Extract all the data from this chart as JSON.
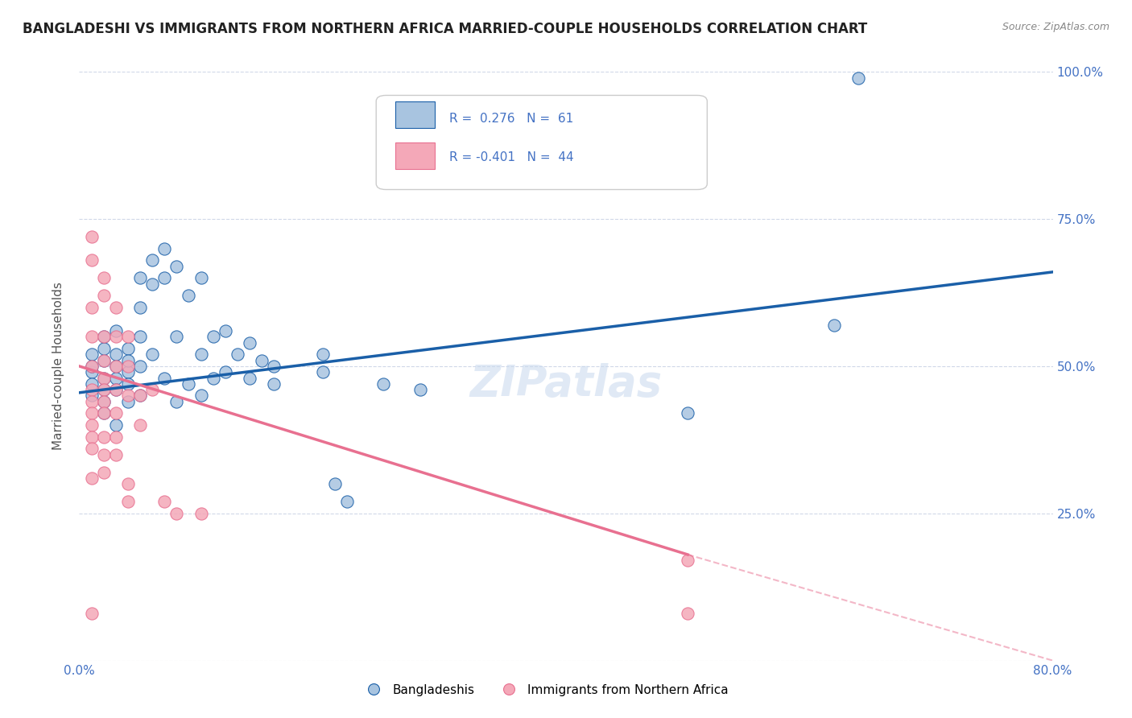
{
  "title": "BANGLADESHI VS IMMIGRANTS FROM NORTHERN AFRICA MARRIED-COUPLE HOUSEHOLDS CORRELATION CHART",
  "source": "Source: ZipAtlas.com",
  "ylabel": "Married-couple Households",
  "xlabel": "",
  "xlim": [
    0.0,
    0.8
  ],
  "ylim": [
    0.0,
    1.0
  ],
  "xticks": [
    0.0,
    0.2,
    0.4,
    0.6,
    0.8
  ],
  "xticklabels": [
    "0.0%",
    "",
    "",
    "",
    "80.0%"
  ],
  "yticks": [
    0.0,
    0.25,
    0.5,
    0.75,
    1.0
  ],
  "yticklabels": [
    "",
    "25.0%",
    "50.0%",
    "75.0%",
    "100.0%"
  ],
  "watermark": "ZIPatlas",
  "blue_R": 0.276,
  "blue_N": 61,
  "pink_R": -0.401,
  "pink_N": 44,
  "blue_color": "#a8c4e0",
  "pink_color": "#f4a8b8",
  "blue_line_color": "#1a5fa8",
  "pink_line_color": "#e87090",
  "blue_scatter": [
    [
      0.01,
      0.49
    ],
    [
      0.01,
      0.47
    ],
    [
      0.01,
      0.45
    ],
    [
      0.01,
      0.52
    ],
    [
      0.01,
      0.5
    ],
    [
      0.02,
      0.48
    ],
    [
      0.02,
      0.51
    ],
    [
      0.02,
      0.44
    ],
    [
      0.02,
      0.46
    ],
    [
      0.02,
      0.53
    ],
    [
      0.02,
      0.55
    ],
    [
      0.02,
      0.42
    ],
    [
      0.03,
      0.5
    ],
    [
      0.03,
      0.48
    ],
    [
      0.03,
      0.52
    ],
    [
      0.03,
      0.46
    ],
    [
      0.03,
      0.56
    ],
    [
      0.03,
      0.4
    ],
    [
      0.04,
      0.49
    ],
    [
      0.04,
      0.53
    ],
    [
      0.04,
      0.51
    ],
    [
      0.04,
      0.44
    ],
    [
      0.04,
      0.47
    ],
    [
      0.05,
      0.55
    ],
    [
      0.05,
      0.65
    ],
    [
      0.05,
      0.6
    ],
    [
      0.05,
      0.5
    ],
    [
      0.05,
      0.45
    ],
    [
      0.06,
      0.68
    ],
    [
      0.06,
      0.64
    ],
    [
      0.06,
      0.52
    ],
    [
      0.07,
      0.7
    ],
    [
      0.07,
      0.65
    ],
    [
      0.07,
      0.48
    ],
    [
      0.08,
      0.67
    ],
    [
      0.08,
      0.55
    ],
    [
      0.08,
      0.44
    ],
    [
      0.09,
      0.62
    ],
    [
      0.09,
      0.47
    ],
    [
      0.1,
      0.65
    ],
    [
      0.1,
      0.52
    ],
    [
      0.1,
      0.45
    ],
    [
      0.11,
      0.55
    ],
    [
      0.11,
      0.48
    ],
    [
      0.12,
      0.56
    ],
    [
      0.12,
      0.49
    ],
    [
      0.13,
      0.52
    ],
    [
      0.14,
      0.54
    ],
    [
      0.14,
      0.48
    ],
    [
      0.15,
      0.51
    ],
    [
      0.16,
      0.5
    ],
    [
      0.16,
      0.47
    ],
    [
      0.2,
      0.52
    ],
    [
      0.2,
      0.49
    ],
    [
      0.21,
      0.3
    ],
    [
      0.22,
      0.27
    ],
    [
      0.25,
      0.47
    ],
    [
      0.28,
      0.46
    ],
    [
      0.5,
      0.42
    ],
    [
      0.62,
      0.57
    ],
    [
      0.64,
      0.99
    ]
  ],
  "pink_scatter": [
    [
      0.01,
      0.68
    ],
    [
      0.01,
      0.72
    ],
    [
      0.01,
      0.6
    ],
    [
      0.01,
      0.55
    ],
    [
      0.01,
      0.5
    ],
    [
      0.01,
      0.46
    ],
    [
      0.01,
      0.44
    ],
    [
      0.01,
      0.42
    ],
    [
      0.01,
      0.4
    ],
    [
      0.01,
      0.38
    ],
    [
      0.01,
      0.36
    ],
    [
      0.01,
      0.31
    ],
    [
      0.01,
      0.08
    ],
    [
      0.02,
      0.65
    ],
    [
      0.02,
      0.62
    ],
    [
      0.02,
      0.55
    ],
    [
      0.02,
      0.51
    ],
    [
      0.02,
      0.48
    ],
    [
      0.02,
      0.46
    ],
    [
      0.02,
      0.44
    ],
    [
      0.02,
      0.42
    ],
    [
      0.02,
      0.38
    ],
    [
      0.02,
      0.35
    ],
    [
      0.02,
      0.32
    ],
    [
      0.03,
      0.6
    ],
    [
      0.03,
      0.55
    ],
    [
      0.03,
      0.5
    ],
    [
      0.03,
      0.46
    ],
    [
      0.03,
      0.42
    ],
    [
      0.03,
      0.38
    ],
    [
      0.03,
      0.35
    ],
    [
      0.04,
      0.55
    ],
    [
      0.04,
      0.5
    ],
    [
      0.04,
      0.45
    ],
    [
      0.04,
      0.3
    ],
    [
      0.04,
      0.27
    ],
    [
      0.05,
      0.45
    ],
    [
      0.05,
      0.4
    ],
    [
      0.06,
      0.46
    ],
    [
      0.07,
      0.27
    ],
    [
      0.08,
      0.25
    ],
    [
      0.1,
      0.25
    ],
    [
      0.5,
      0.17
    ],
    [
      0.5,
      0.08
    ]
  ],
  "blue_line": [
    [
      0.0,
      0.455
    ],
    [
      0.8,
      0.66
    ]
  ],
  "pink_line": [
    [
      0.0,
      0.5
    ],
    [
      0.5,
      0.18
    ]
  ],
  "pink_line_dashed": [
    [
      0.5,
      0.18
    ],
    [
      0.8,
      0.0
    ]
  ],
  "background_color": "#ffffff",
  "grid_color": "#d0d8e8",
  "title_color": "#222222",
  "axis_color": "#4472c4",
  "title_fontsize": 12,
  "axis_label_fontsize": 11,
  "tick_fontsize": 11,
  "legend_bottom_labels": [
    "Bangladeshis",
    "Immigrants from Northern Africa"
  ]
}
